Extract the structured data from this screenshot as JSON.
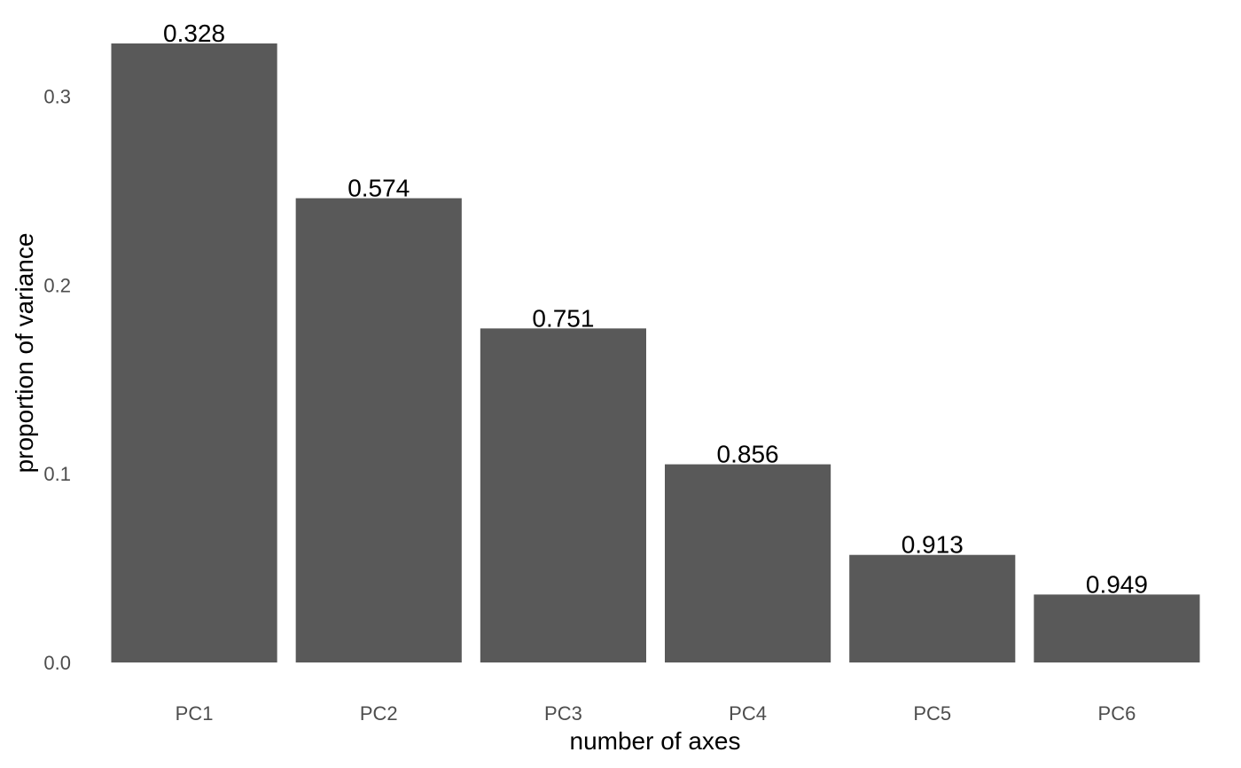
{
  "chart_data": {
    "type": "bar",
    "title": "",
    "xlabel": "number of axes",
    "ylabel": "proportion of variance",
    "categories": [
      "PC1",
      "PC2",
      "PC3",
      "PC4",
      "PC5",
      "PC6"
    ],
    "values": [
      0.328,
      0.246,
      0.177,
      0.105,
      0.057,
      0.036
    ],
    "data_labels": [
      "0.328",
      "0.574",
      "0.751",
      "0.856",
      "0.913",
      "0.949"
    ],
    "yticks": [
      0.0,
      0.1,
      0.2,
      0.3
    ],
    "ytick_labels": [
      "0.0",
      "0.1",
      "0.2",
      "0.3"
    ],
    "ylim": [
      0,
      0.344
    ],
    "grid": false,
    "legend": "none",
    "bar_color": "#595959"
  }
}
